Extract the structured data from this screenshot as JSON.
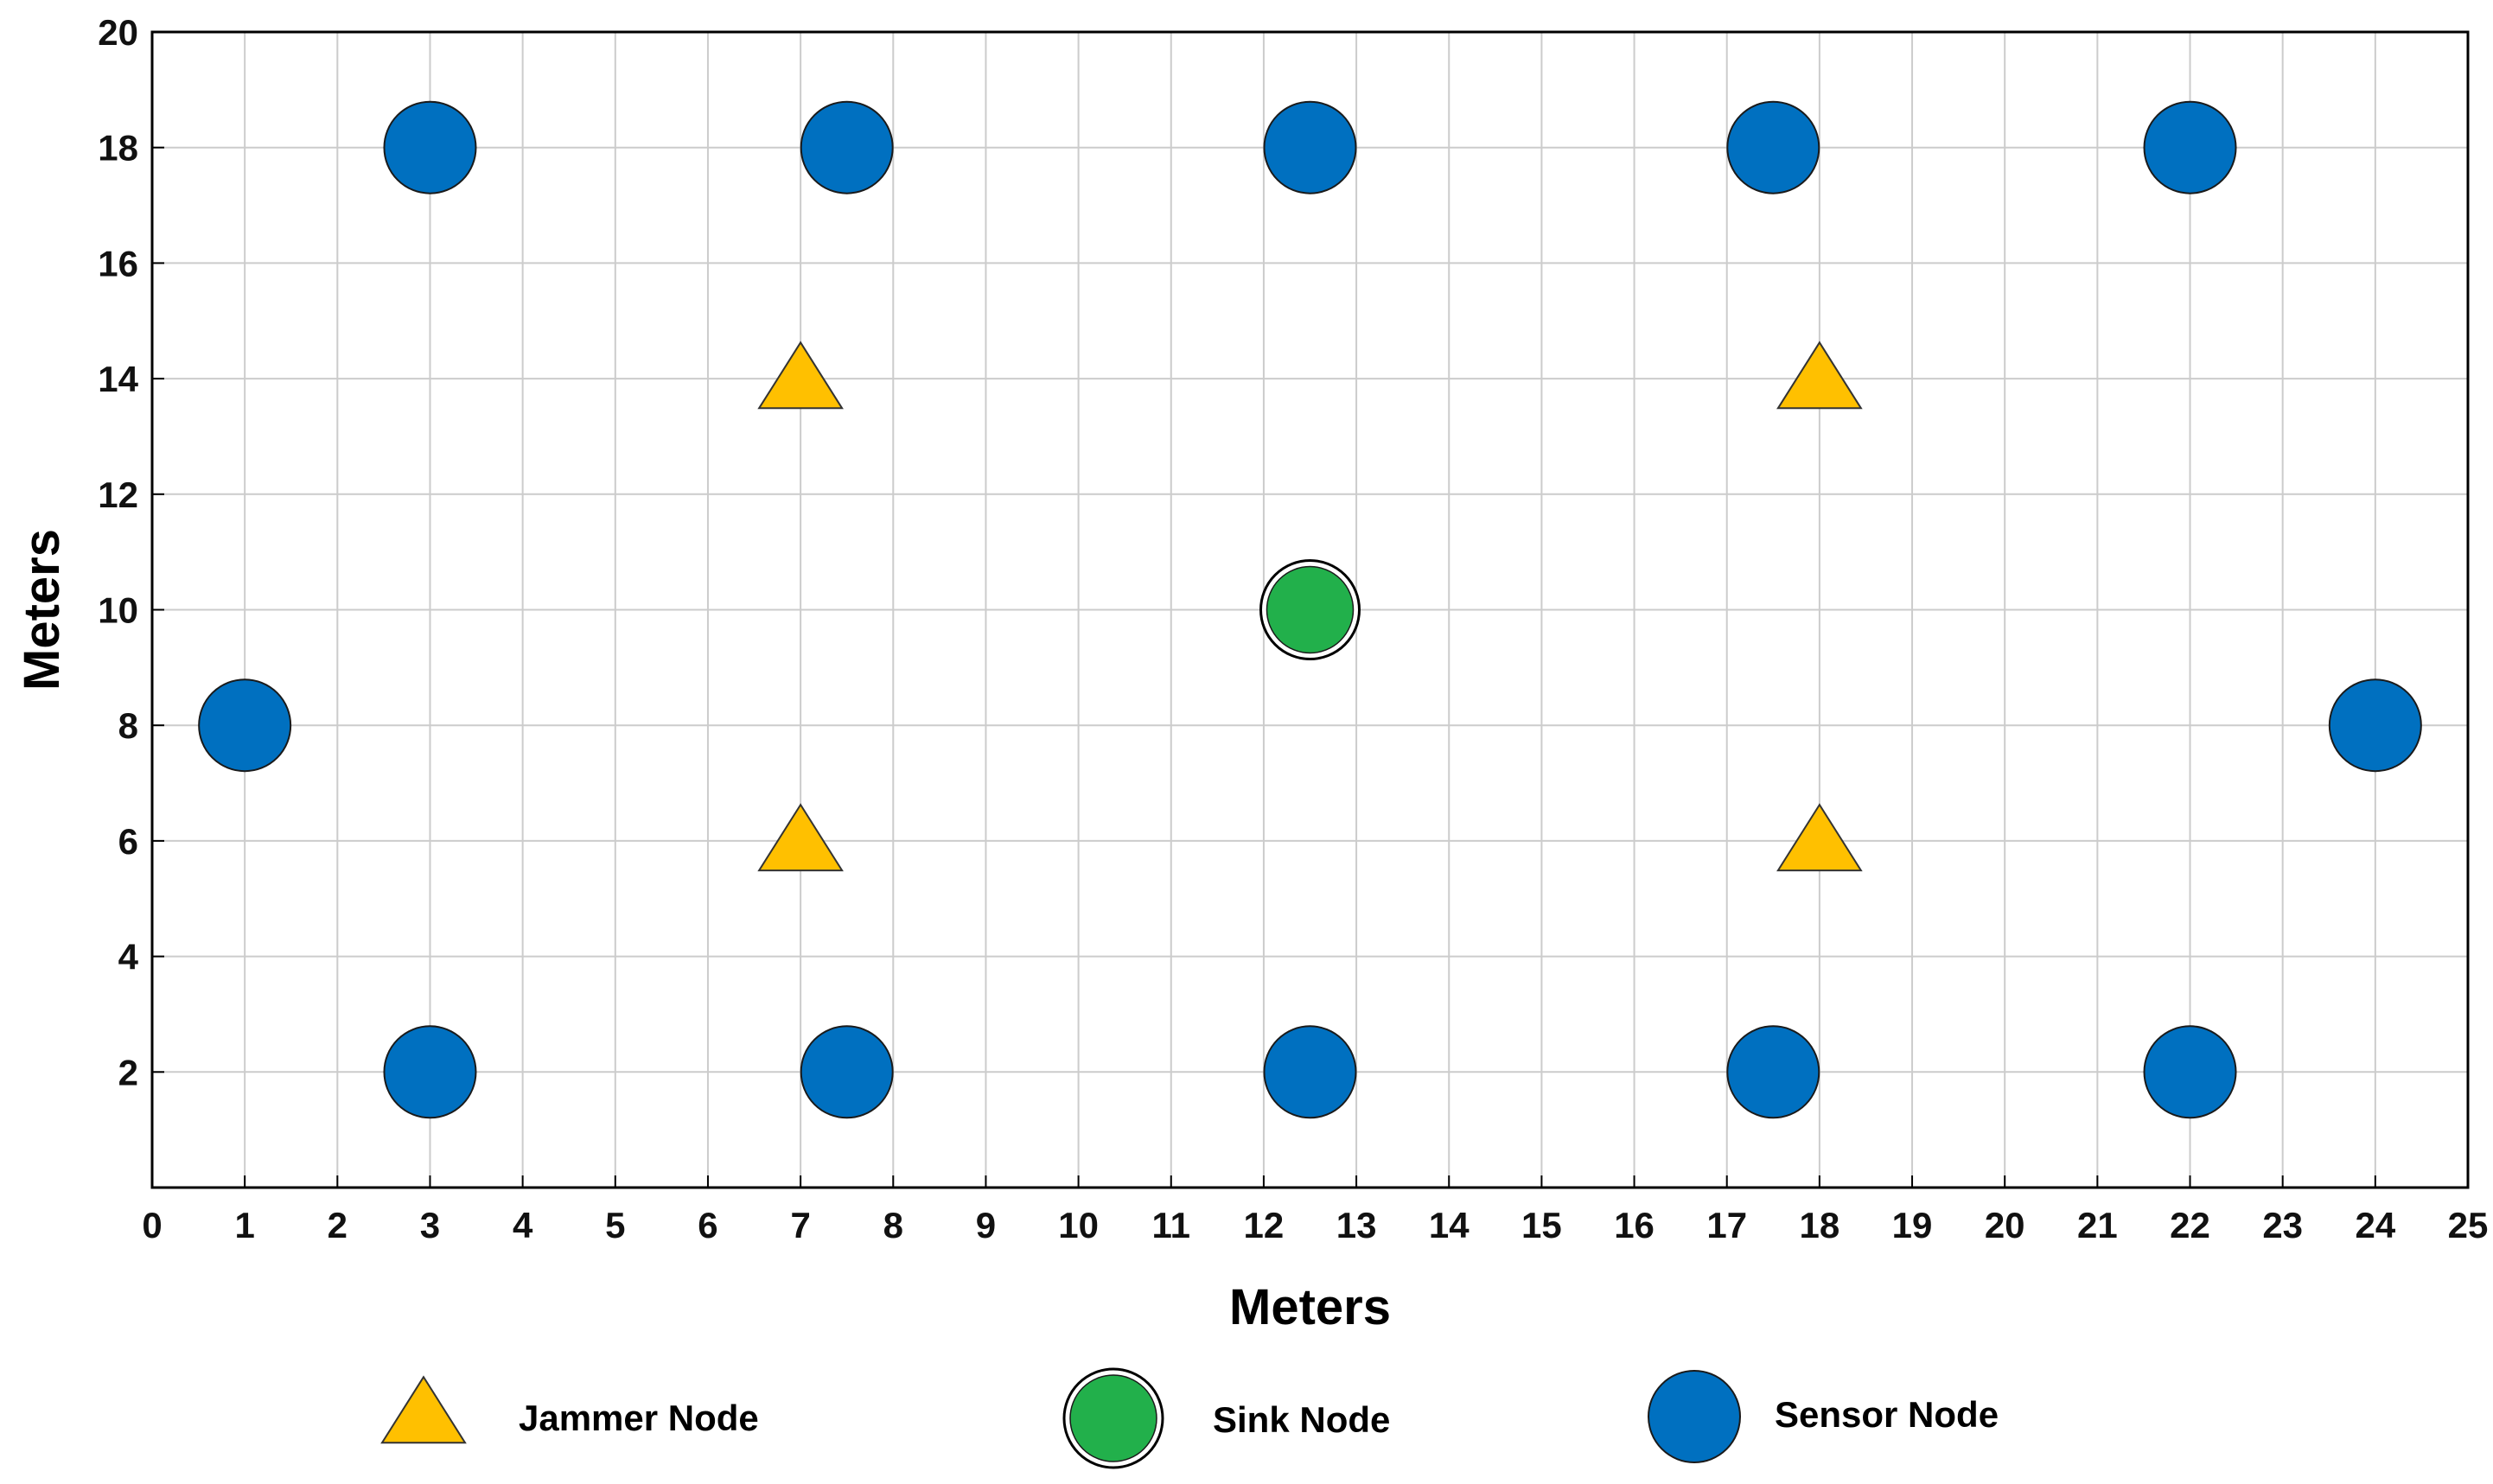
{
  "chart_data": {
    "type": "scatter",
    "title": "",
    "xlabel": "Meters",
    "ylabel": "Meters",
    "xlim": [
      0,
      25
    ],
    "ylim": [
      0,
      20
    ],
    "xticks": [
      0,
      1,
      2,
      3,
      4,
      5,
      6,
      7,
      8,
      9,
      10,
      11,
      12,
      13,
      14,
      15,
      16,
      17,
      18,
      19,
      20,
      21,
      22,
      23,
      24,
      25
    ],
    "yticks": [
      2,
      4,
      6,
      8,
      10,
      12,
      14,
      16,
      18,
      20
    ],
    "grid": true,
    "legend_position": "bottom",
    "series": [
      {
        "name": "Jammer Node",
        "marker": "triangle",
        "color": "#FFC000",
        "points": [
          {
            "x": 7,
            "y": 14
          },
          {
            "x": 18,
            "y": 14
          },
          {
            "x": 7,
            "y": 6
          },
          {
            "x": 18,
            "y": 6
          }
        ]
      },
      {
        "name": "Sink Node",
        "marker": "circle-ring",
        "color": "#22B04B",
        "points": [
          {
            "x": 12.5,
            "y": 10
          }
        ]
      },
      {
        "name": "Sensor Node",
        "marker": "circle",
        "color": "#0070C0",
        "points": [
          {
            "x": 3,
            "y": 18
          },
          {
            "x": 7.5,
            "y": 18
          },
          {
            "x": 12.5,
            "y": 18
          },
          {
            "x": 17.5,
            "y": 18
          },
          {
            "x": 22,
            "y": 18
          },
          {
            "x": 1,
            "y": 8
          },
          {
            "x": 24,
            "y": 8
          },
          {
            "x": 3,
            "y": 2
          },
          {
            "x": 7.5,
            "y": 2
          },
          {
            "x": 12.5,
            "y": 2
          },
          {
            "x": 17.5,
            "y": 2
          },
          {
            "x": 22,
            "y": 2
          }
        ]
      }
    ]
  }
}
